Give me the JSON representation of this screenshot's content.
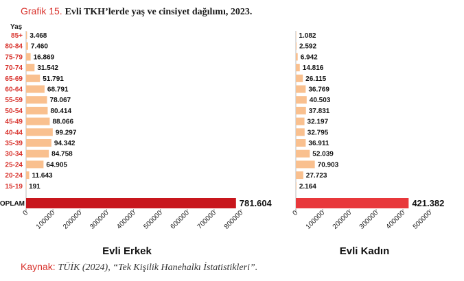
{
  "title": {
    "label": "Grafik 15.",
    "text": "Evli TKH’lerde yaş ve cinsiyet dağılımı, 2023."
  },
  "source": {
    "label": "Kaynak:",
    "text": "TÜİK (2024), “Tek Kişilik Hanehalkı İstatistikleri”."
  },
  "colors": {
    "accent": "#d8312b",
    "bar_light": "#f9c08f",
    "total_male": "#c8161d",
    "total_female": "#e8383b"
  },
  "chart_data": [
    {
      "type": "bar",
      "orientation": "horizontal",
      "title": "Evli Erkek",
      "ylabel": "Yaş",
      "categories": [
        "85+",
        "80-84",
        "75-79",
        "70-74",
        "65-69",
        "60-64",
        "55-59",
        "50-54",
        "45-49",
        "40-44",
        "35-39",
        "30-34",
        "25-24",
        "20-24",
        "15-19"
      ],
      "values": [
        3468,
        7460,
        16869,
        31542,
        51791,
        68791,
        78067,
        80414,
        88066,
        99297,
        94342,
        84758,
        64905,
        11643,
        191
      ],
      "value_labels": [
        "3.468",
        "7.460",
        "16.869",
        "31.542",
        "51.791",
        "68.791",
        "78.067",
        "80.414",
        "88.066",
        "99.297",
        "94.342",
        "84.758",
        "64.905",
        "11.643",
        "191"
      ],
      "total": {
        "category": "TOPLAM",
        "value": 781604,
        "value_label": "781.604"
      },
      "xlim": [
        0,
        800000
      ],
      "xticks": [
        0,
        100000,
        200000,
        300000,
        400000,
        500000,
        600000,
        700000,
        800000
      ],
      "xtick_labels": [
        "0",
        "100000",
        "200000",
        "300000",
        "400000",
        "500000",
        "600000",
        "700000",
        "800000"
      ]
    },
    {
      "type": "bar",
      "orientation": "horizontal",
      "title": "Evli Kadın",
      "categories": [
        "85+",
        "80-84",
        "75-79",
        "70-74",
        "65-69",
        "60-64",
        "55-59",
        "50-54",
        "45-49",
        "40-44",
        "35-39",
        "30-34",
        "25-24",
        "20-24",
        "15-19"
      ],
      "values": [
        1082,
        2592,
        6942,
        14816,
        26115,
        36769,
        40503,
        37831,
        32197,
        32795,
        36911,
        52039,
        70903,
        27723,
        2164
      ],
      "value_labels": [
        "1.082",
        "2.592",
        "6.942",
        "14.816",
        "26.115",
        "36.769",
        "40.503",
        "37.831",
        "32.197",
        "32.795",
        "36.911",
        "52.039",
        "70.903",
        "27.723",
        "2.164"
      ],
      "total": {
        "category": "TOPLAM",
        "value": 421382,
        "value_label": "421.382"
      },
      "xlim": [
        0,
        500000
      ],
      "xticks": [
        0,
        100000,
        200000,
        300000,
        400000,
        500000
      ],
      "xtick_labels": [
        "0",
        "100000",
        "200000",
        "300000",
        "400000",
        "500000"
      ]
    }
  ]
}
